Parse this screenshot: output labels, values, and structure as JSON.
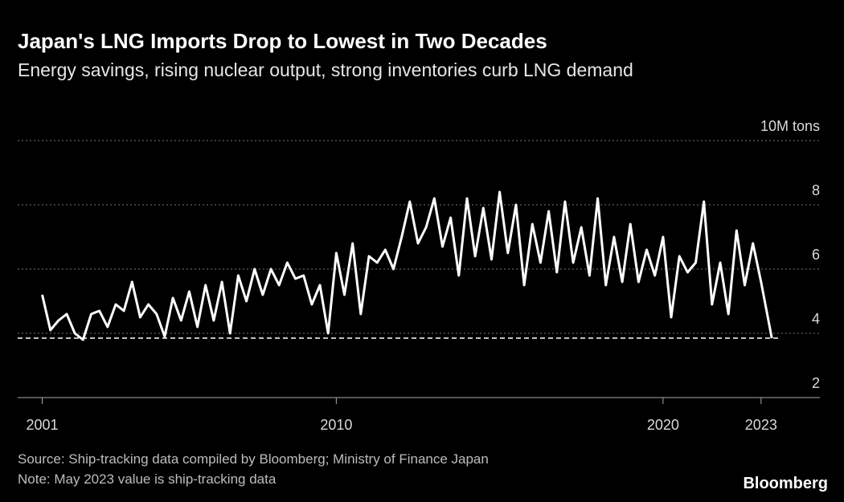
{
  "chart_data": {
    "type": "line",
    "title": "Japan's LNG Imports Drop to Lowest in Two Decades",
    "subtitle": "Energy savings, rising nuclear output, strong inventories curb LNG demand",
    "source": "Source: Ship-tracking data compiled by Bloomberg; Ministry of Finance Japan",
    "note": "Note: May 2023 value is ship-tracking data",
    "brand": "Bloomberg",
    "x": [
      2001,
      2001.25,
      2001.5,
      2001.75,
      2002,
      2002.25,
      2002.5,
      2002.75,
      2003,
      2003.25,
      2003.5,
      2003.75,
      2004,
      2004.25,
      2004.5,
      2004.75,
      2005,
      2005.25,
      2005.5,
      2005.75,
      2006,
      2006.25,
      2006.5,
      2006.75,
      2007,
      2007.25,
      2007.5,
      2007.75,
      2008,
      2008.25,
      2008.5,
      2008.75,
      2009,
      2009.25,
      2009.5,
      2009.75,
      2010,
      2010.25,
      2010.5,
      2010.75,
      2011,
      2011.25,
      2011.5,
      2011.75,
      2012,
      2012.25,
      2012.5,
      2012.75,
      2013,
      2013.25,
      2013.5,
      2013.75,
      2014,
      2014.25,
      2014.5,
      2014.75,
      2015,
      2015.25,
      2015.5,
      2015.75,
      2016,
      2016.25,
      2016.5,
      2016.75,
      2017,
      2017.25,
      2017.5,
      2017.75,
      2018,
      2018.25,
      2018.5,
      2018.75,
      2019,
      2019.25,
      2019.5,
      2019.75,
      2020,
      2020.25,
      2020.5,
      2020.75,
      2021,
      2021.25,
      2021.5,
      2021.75,
      2022,
      2022.25,
      2022.5,
      2022.75,
      2023,
      2023.33
    ],
    "series": [
      {
        "color": "#ffffff",
        "values": [
          5.2,
          4.1,
          4.4,
          4.6,
          4.0,
          3.8,
          4.6,
          4.7,
          4.2,
          4.9,
          4.7,
          5.6,
          4.5,
          4.9,
          4.6,
          3.9,
          5.1,
          4.4,
          5.3,
          4.2,
          5.5,
          4.4,
          5.6,
          4.0,
          5.8,
          5.0,
          6.0,
          5.2,
          6.0,
          5.5,
          6.2,
          5.7,
          5.8,
          4.9,
          5.5,
          4.0,
          6.5,
          5.2,
          6.8,
          4.6,
          6.4,
          6.2,
          6.6,
          6.0,
          7.0,
          8.1,
          6.8,
          7.3,
          8.2,
          6.7,
          7.6,
          5.8,
          8.2,
          6.4,
          7.9,
          6.3,
          8.4,
          6.5,
          8.0,
          5.5,
          7.4,
          6.2,
          7.8,
          5.9,
          8.1,
          6.2,
          7.3,
          5.8,
          8.2,
          5.5,
          7.0,
          5.6,
          7.4,
          5.6,
          6.6,
          5.8,
          7.0,
          4.5,
          6.4,
          5.9,
          6.2,
          8.1,
          4.9,
          6.2,
          4.6,
          7.2,
          5.5,
          6.8,
          5.6,
          3.85
        ]
      }
    ],
    "reference_line": 3.85,
    "xlim": [
      2000.25,
      2024.8
    ],
    "xticks": [
      2001,
      2010,
      2020,
      2023
    ],
    "ylim": [
      2,
      10
    ],
    "yticks": [
      2,
      4,
      6,
      8,
      {
        "value": 10,
        "label": "10M tons"
      }
    ],
    "grid": true
  }
}
